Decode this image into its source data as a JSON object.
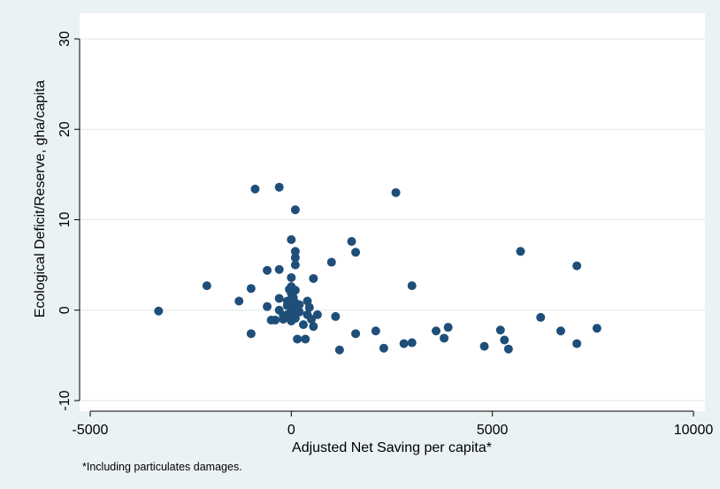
{
  "chart_data": {
    "type": "scatter",
    "title": "",
    "xlabel": "Adjusted Net Saving per capita*",
    "ylabel": "Ecological Deficit/Reserve, gha/capita",
    "xlim": [
      -5000,
      10000
    ],
    "ylim": [
      -10,
      30
    ],
    "xticks": [
      -5000,
      0,
      5000,
      10000
    ],
    "yticks": [
      -10,
      0,
      10,
      20,
      30
    ],
    "grid": "horizontal",
    "legend": "none",
    "marker_color": "#1f4e79",
    "footnote": "*Including particulates damages.",
    "series": [
      {
        "points": [
          [
            -3300,
            -0.1
          ],
          [
            -2100,
            2.7
          ],
          [
            -1300,
            1.0
          ],
          [
            -1000,
            2.4
          ],
          [
            -1000,
            -2.6
          ],
          [
            -900,
            13.4
          ],
          [
            -600,
            4.4
          ],
          [
            -600,
            0.4
          ],
          [
            -500,
            -1.1
          ],
          [
            -400,
            -1.1
          ],
          [
            -300,
            4.5
          ],
          [
            -300,
            13.6
          ],
          [
            -300,
            1.3
          ],
          [
            -300,
            0.0
          ],
          [
            -200,
            -0.6
          ],
          [
            -200,
            -1.0
          ],
          [
            -100,
            1.0
          ],
          [
            -100,
            0.5
          ],
          [
            -100,
            -0.5
          ],
          [
            -50,
            2.3
          ],
          [
            0,
            3.6
          ],
          [
            0,
            7.8
          ],
          [
            0,
            2.6
          ],
          [
            0,
            1.9
          ],
          [
            0,
            1.2
          ],
          [
            0,
            0.5
          ],
          [
            0,
            -0.2
          ],
          [
            0,
            -1.2
          ],
          [
            50,
            1.4
          ],
          [
            50,
            0.2
          ],
          [
            50,
            -0.7
          ],
          [
            100,
            11.1
          ],
          [
            100,
            6.5
          ],
          [
            100,
            5.8
          ],
          [
            100,
            5.0
          ],
          [
            100,
            2.2
          ],
          [
            100,
            0.8
          ],
          [
            100,
            -0.1
          ],
          [
            100,
            -0.9
          ],
          [
            150,
            -3.2
          ],
          [
            200,
            0.6
          ],
          [
            200,
            -0.2
          ],
          [
            300,
            -1.6
          ],
          [
            350,
            -3.2
          ],
          [
            400,
            1.0
          ],
          [
            400,
            -0.5
          ],
          [
            450,
            0.3
          ],
          [
            500,
            -1.0
          ],
          [
            550,
            3.5
          ],
          [
            550,
            -1.8
          ],
          [
            650,
            -0.5
          ],
          [
            1000,
            5.3
          ],
          [
            1100,
            -0.7
          ],
          [
            1200,
            -4.4
          ],
          [
            1500,
            7.6
          ],
          [
            1600,
            6.4
          ],
          [
            1600,
            -2.6
          ],
          [
            2100,
            -2.3
          ],
          [
            2300,
            -4.2
          ],
          [
            2600,
            13.0
          ],
          [
            2800,
            -3.7
          ],
          [
            3000,
            2.7
          ],
          [
            3000,
            -3.6
          ],
          [
            3600,
            -2.3
          ],
          [
            3800,
            -3.1
          ],
          [
            3900,
            -1.9
          ],
          [
            4800,
            -4.0
          ],
          [
            5200,
            -2.2
          ],
          [
            5300,
            -3.3
          ],
          [
            5400,
            -4.3
          ],
          [
            5700,
            6.5
          ],
          [
            6200,
            -0.8
          ],
          [
            6700,
            -2.3
          ],
          [
            7100,
            4.9
          ],
          [
            7100,
            -3.7
          ],
          [
            7600,
            -2.0
          ]
        ]
      }
    ]
  }
}
